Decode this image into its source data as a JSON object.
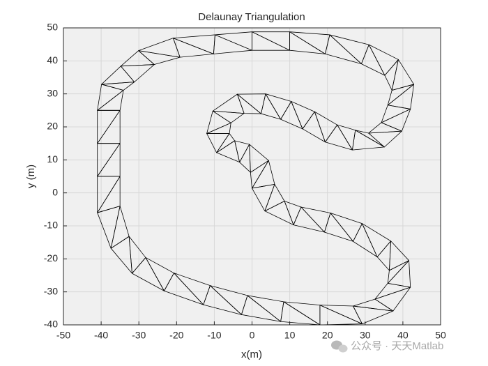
{
  "chart_data": {
    "type": "triangulation",
    "title": "Delaunay Triangulation",
    "xlabel": "x(m)",
    "ylabel": "y (m)",
    "xlim": [
      -50,
      50
    ],
    "ylim": [
      -40,
      50
    ],
    "xticks": [
      -50,
      -40,
      -30,
      -20,
      -10,
      0,
      10,
      20,
      30,
      40,
      50
    ],
    "yticks": [
      -40,
      -30,
      -20,
      -10,
      0,
      10,
      20,
      30,
      40,
      50
    ],
    "grid": true,
    "color": "#000000",
    "series": [
      {
        "x": [
          -41,
          -41,
          -41,
          -41,
          -37.4,
          -31.8,
          -23.3,
          -12.9,
          -2.8,
          7.6,
          18,
          29.2,
          37.4,
          42,
          41.6,
          36.8,
          29.2,
          20.8,
          13,
          8.6,
          6,
          4.4,
          -0.7,
          -4.6,
          -6,
          -5.6,
          -2.1,
          2.4,
          7.6,
          13.4,
          19.4,
          26.6,
          35.1,
          39.7,
          42,
          42.9,
          38.8,
          31,
          20.6,
          10,
          0,
          -9.8,
          -20.9,
          -30.1,
          -34.8,
          -39.9
        ],
        "y": [
          25,
          15,
          5,
          -6,
          -16.8,
          -24.4,
          -29.7,
          -33.9,
          -36.9,
          -39,
          -40,
          -39.7,
          -35.8,
          -28.6,
          -20.5,
          -14.6,
          -9.3,
          -6.1,
          -4.3,
          -2.5,
          2.6,
          9.8,
          14.7,
          15.8,
          18,
          21.2,
          24.1,
          24,
          22.3,
          19.4,
          15.4,
          13,
          13.9,
          18.7,
          25.4,
          32.9,
          40.4,
          44.9,
          47.9,
          48.8,
          48.8,
          47.9,
          46.9,
          43.1,
          38.4,
          32.9
        ]
      },
      {
        "x": [
          -35,
          -35,
          -35,
          -35,
          -32.6,
          -28.2,
          -20.7,
          -11.1,
          -1.2,
          8.4,
          18,
          26.8,
          32.6,
          36,
          36.4,
          33.2,
          26.8,
          19.2,
          11,
          3.4,
          0,
          -0.4,
          -3.3,
          -9.4,
          -12,
          -10.4,
          -3.9,
          3.6,
          10.4,
          16.6,
          22.6,
          27.4,
          30.9,
          34.3,
          36,
          37.1,
          35.2,
          29,
          19.4,
          10,
          0,
          -10.2,
          -19.1,
          -25.9,
          -31.2,
          -34.1
        ],
        "y": [
          25,
          15,
          5,
          -4,
          -13.2,
          -19.6,
          -24.3,
          -28.1,
          -31.1,
          -33,
          -34,
          -34.3,
          -32.2,
          -27.4,
          -23.5,
          -19.4,
          -14.7,
          -11.9,
          -9.7,
          -5.5,
          1.4,
          6.2,
          9.3,
          12.2,
          18,
          24.8,
          29.9,
          30,
          27.7,
          24.6,
          20.6,
          19,
          18.1,
          21.3,
          26.6,
          31.1,
          35.6,
          39.1,
          42.1,
          43.2,
          43.2,
          42.1,
          41.1,
          38.9,
          33.6,
          31.1
        ]
      }
    ]
  },
  "watermark": "公众号 · 天天Matlab"
}
